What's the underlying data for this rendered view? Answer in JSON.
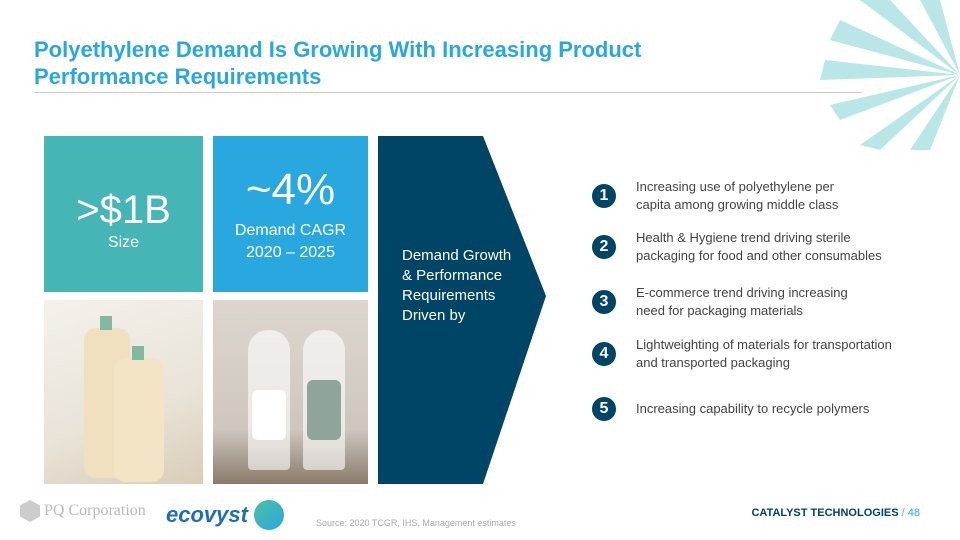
{
  "title": "Polyethylene Demand Is Growing With Increasing Product Performance Requirements",
  "stat1": {
    "value": ">$1B",
    "label": "Size"
  },
  "stat2": {
    "value": "~4%",
    "label": "Demand CAGR",
    "period": "2020 – 2025"
  },
  "arrow_text": "Demand Growth & Performance Requirements Driven by",
  "drivers": [
    {
      "n": "1",
      "text": "Increasing use of polyethylene per capita among growing middle class"
    },
    {
      "n": "2",
      "text": "Health & Hygiene trend driving sterile packaging for food and other consumables"
    },
    {
      "n": "3",
      "text": "E-commerce trend driving increasing need for packaging materials"
    },
    {
      "n": "4",
      "text": "Lightweighting of materials for transportation and transported packaging"
    },
    {
      "n": "5",
      "text": "Increasing capability to recycle polymers"
    }
  ],
  "footer": {
    "logo1": "PQ Corporation",
    "logo2": "ecovyst",
    "source": "Source: 2020 TCGR, IHS, Management estimates",
    "division": "CATALYST TECHNOLOGIES",
    "separator": "/",
    "page": "48"
  },
  "colors": {
    "teal": "#45b5b5",
    "blue": "#29a8e0",
    "navy": "#004466"
  }
}
